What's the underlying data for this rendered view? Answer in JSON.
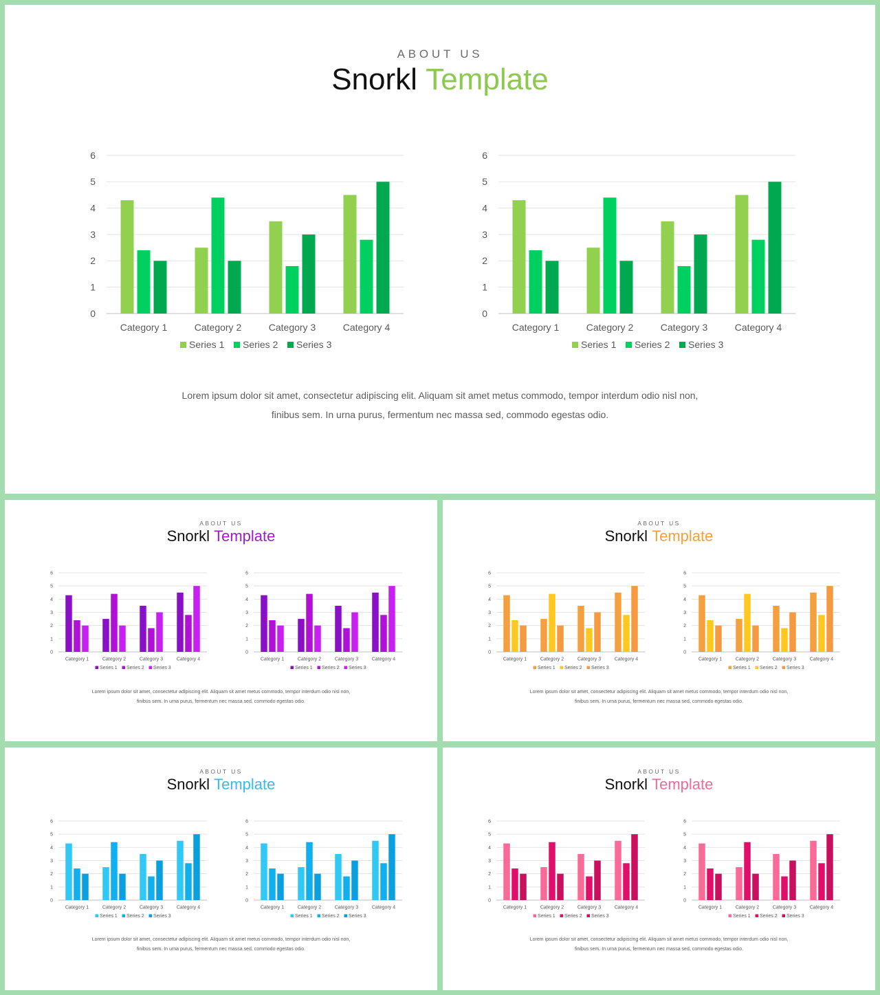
{
  "slides": [
    {
      "id": "green",
      "about": "ABOUT US",
      "title_part1": "Snorkl",
      "title_part2": "Template",
      "accent": "#8dc84f",
      "series_colors": [
        "#92d050",
        "#00d060",
        "#00a850"
      ],
      "body_line1": "Lorem  ipsum dolor  sit amet,  consectetur adipiscing elit. Aliquam sit amet metus  commodo,  tempor  interdum  odio  nisl non,",
      "body_line2": "finibus sem.  In urna purus,  fermentum  nec massa sed, commodo  egestas odio."
    },
    {
      "id": "purple",
      "about": "ABOUT US",
      "title_part1": "Snorkl",
      "title_part2": "Template",
      "accent": "#9b1fc4",
      "series_colors": [
        "#8a10c8",
        "#b010d8",
        "#c820f0"
      ],
      "body_line1": "Lorem  ipsum dolor  sit amet,  consectetur adipiscing elit. Aliquam sit amet metus  commodo,  tempor  interdum  odio  nisl non,",
      "body_line2": "finibus sem.  In urna purus,  fermentum  nec massa sed, commodo  egestas odio."
    },
    {
      "id": "orange",
      "about": "ABOUT US",
      "title_part1": "Snorkl",
      "title_part2": "Template",
      "accent": "#f4a040",
      "series_colors": [
        "#f5a040",
        "#ffc820",
        "#f59a40"
      ],
      "body_line1": "Lorem  ipsum dolor  sit amet,  consectetur adipiscing elit. Aliquam sit amet metus  commodo,  tempor  interdum  odio  nisl non,",
      "body_line2": "finibus sem.  In urna purus,  fermentum  nec massa sed, commodo  egestas odio."
    },
    {
      "id": "blue",
      "about": "ABOUT US",
      "title_part1": "Snorkl",
      "title_part2": "Template",
      "accent": "#33bde8",
      "series_colors": [
        "#30c8f5",
        "#10b0f0",
        "#0aa0e0"
      ],
      "body_line1": "Lorem  ipsum dolor  sit amet,  consectetur adipiscing elit. Aliquam sit amet metus  commodo,  tempor  interdum  odio  nisl non,",
      "body_line2": "finibus sem.  In urna purus,  fermentum  nec massa sed, commodo  egestas odio."
    },
    {
      "id": "pink",
      "about": "ABOUT US",
      "title_part1": "Snorkl",
      "title_part2": "Template",
      "accent": "#f06a9a",
      "series_colors": [
        "#f86a98",
        "#e0106a",
        "#c8105e"
      ],
      "body_line1": "Lorem  ipsum dolor  sit amet,  consectetur adipiscing elit. Aliquam sit amet metus  commodo,  tempor  interdum  odio  nisl non,",
      "body_line2": "finibus sem.  In urna purus,  fermentum  nec massa sed, commodo  egestas odio."
    }
  ],
  "chart_data": {
    "type": "bar",
    "categories": [
      "Category 1",
      "Category 2",
      "Category 3",
      "Category 4"
    ],
    "series": [
      {
        "name": "Series 1",
        "values": [
          4.3,
          2.5,
          3.5,
          4.5
        ]
      },
      {
        "name": "Series 2",
        "values": [
          2.4,
          4.4,
          1.8,
          2.8
        ]
      },
      {
        "name": "Series 3",
        "values": [
          2.0,
          2.0,
          3.0,
          5.0
        ]
      }
    ],
    "ylim": [
      0,
      6
    ],
    "yticks": [
      "0",
      "1",
      "2",
      "3",
      "4",
      "5",
      "6"
    ],
    "grid": true,
    "legend_position": "bottom",
    "charts_per_slide": 2
  }
}
